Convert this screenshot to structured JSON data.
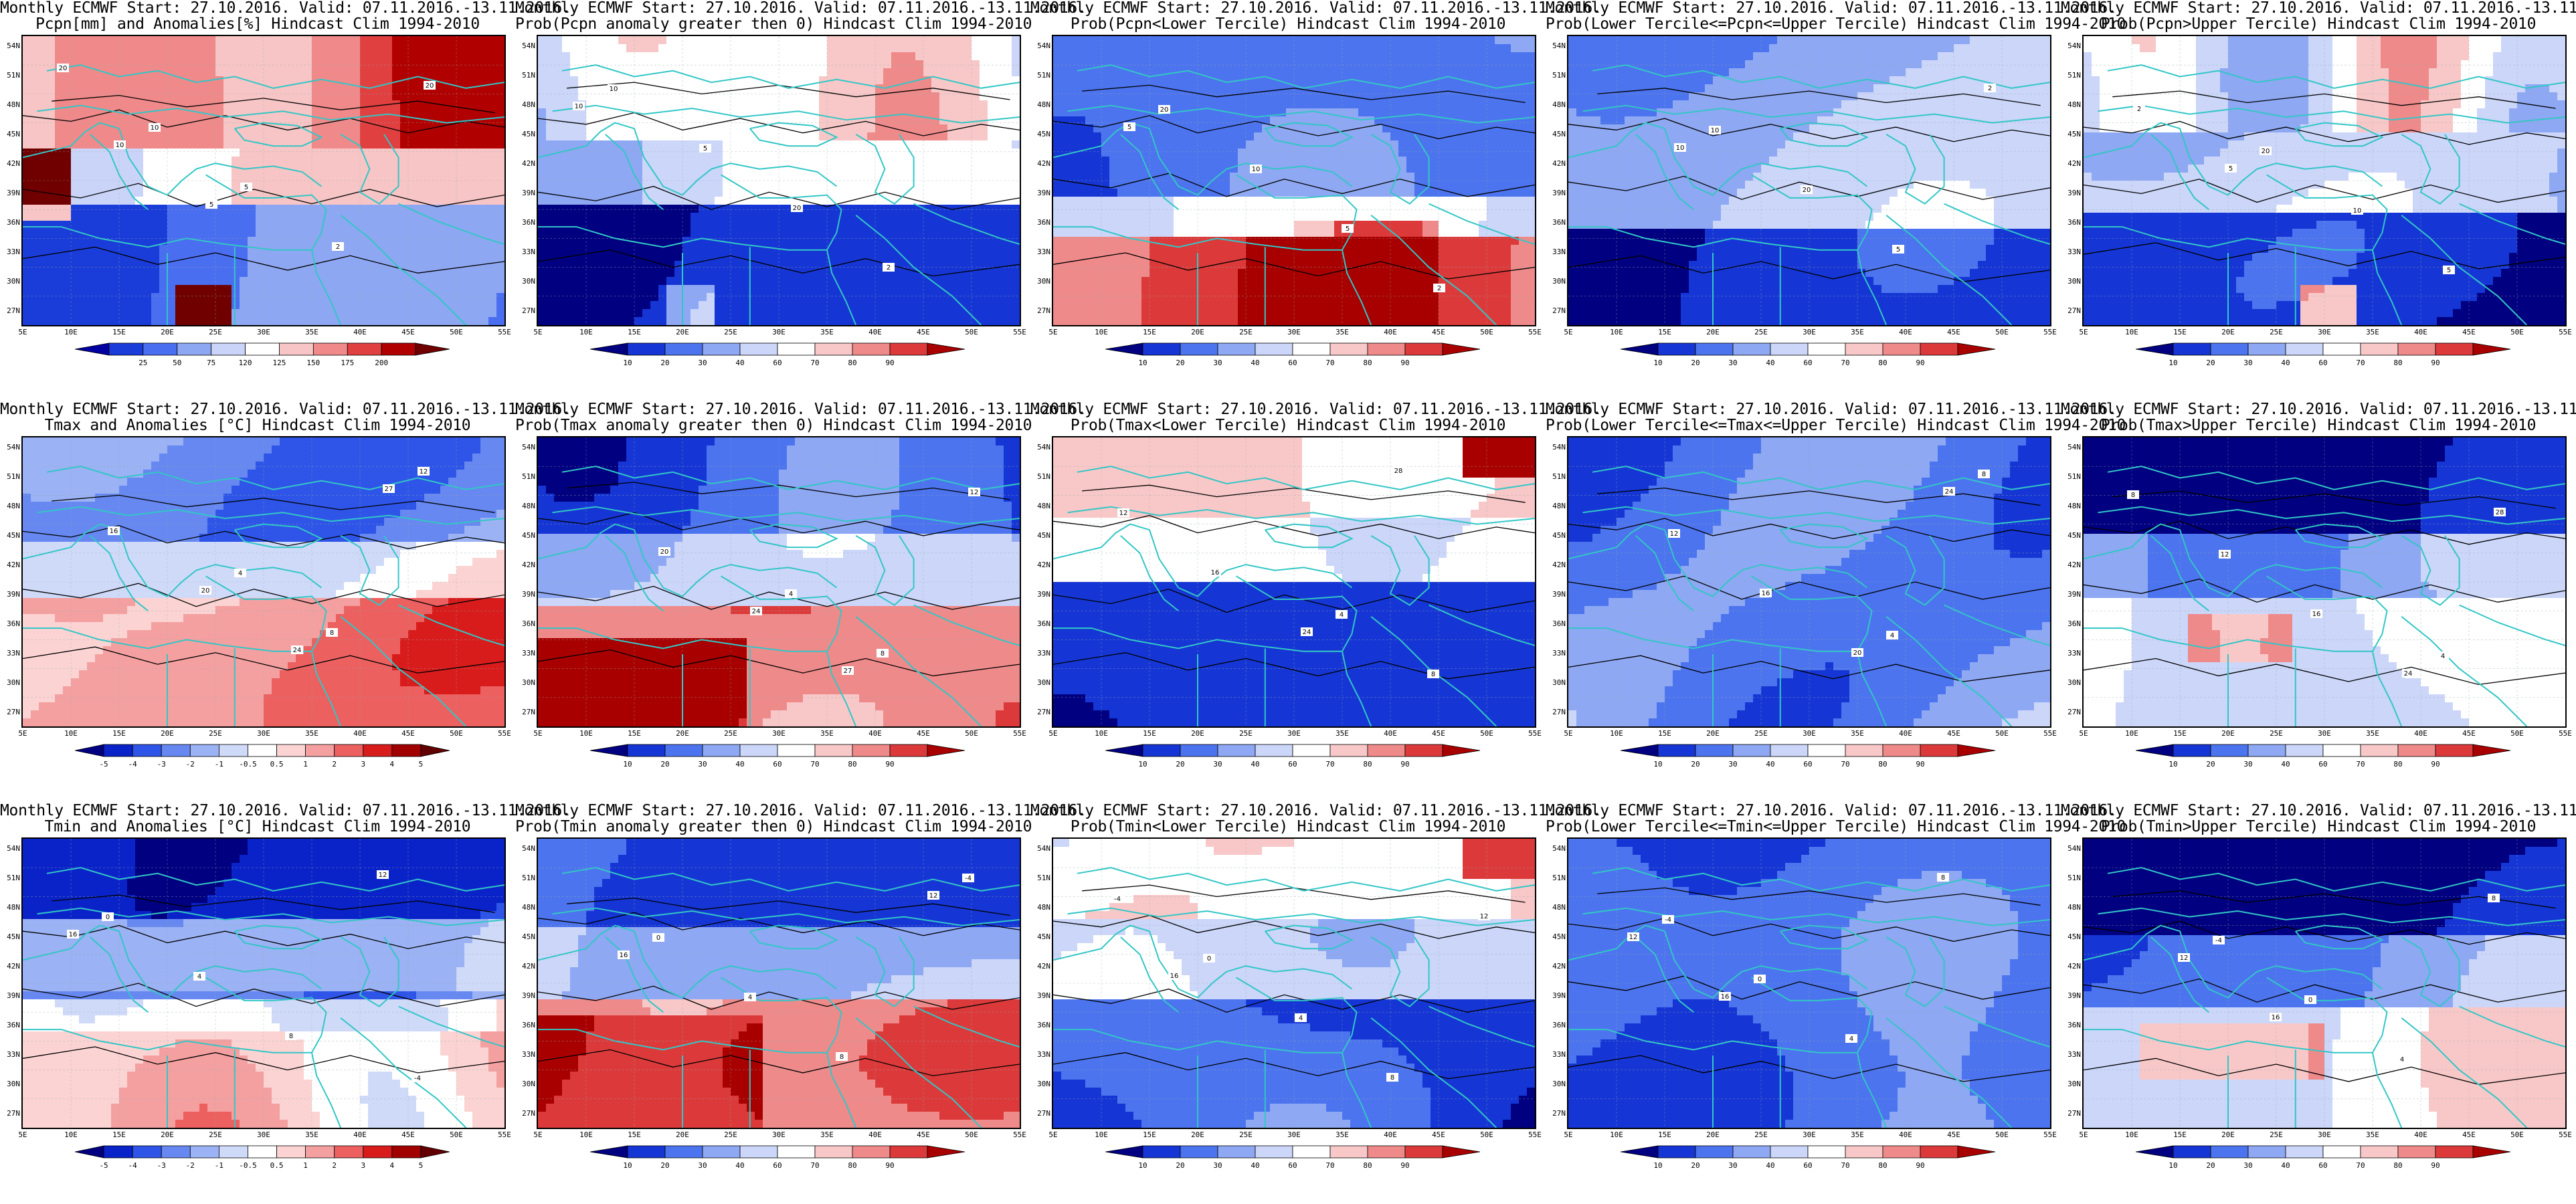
{
  "figure": {
    "title_line1": "Monthly ECMWF Start: 27.10.2016. Valid: 07.11.2016.-13.11.2016.",
    "lat_labels": [
      "54N",
      "51N",
      "48N",
      "45N",
      "42N",
      "39N",
      "36N",
      "33N",
      "30N",
      "27N"
    ],
    "lon_labels": [
      "5E",
      "10E",
      "15E",
      "20E",
      "25E",
      "30E",
      "35E",
      "40E",
      "45E",
      "50E",
      "55E"
    ]
  },
  "colors": {
    "land_border": "#33c6c6",
    "contour": "#000000",
    "deep_blue": "#06038f",
    "deep_red": "#8f0303"
  },
  "colorbars": {
    "pcpn_anom": {
      "labels": [
        "25",
        "50",
        "75",
        "120",
        "125",
        "150",
        "175",
        "200"
      ],
      "colors": [
        "#0000a0",
        "#1a3cd8",
        "#4a6ef0",
        "#8ea7f2",
        "#c9d4f8",
        "#ffffff",
        "#f7c5c5",
        "#f08a8a",
        "#e04040",
        "#b00000",
        "#700000"
      ]
    },
    "temp_anom": {
      "labels": [
        "-5",
        "-4",
        "-3",
        "-2",
        "-1",
        "-0.5",
        "0.5",
        "1",
        "2",
        "3",
        "4",
        "5"
      ],
      "colors": [
        "#000080",
        "#0a23c8",
        "#2e55e8",
        "#6688f0",
        "#9bb2f4",
        "#cfdaf9",
        "#ffffff",
        "#fbd3d3",
        "#f4a0a0",
        "#ec6060",
        "#d81c1c",
        "#a00000",
        "#600000"
      ]
    },
    "prob": {
      "labels": [
        "10",
        "20",
        "30",
        "40",
        "60",
        "70",
        "80",
        "90"
      ],
      "colors": [
        "#000080",
        "#1536d4",
        "#4c74ee",
        "#8ea8f3",
        "#cbd6f9",
        "#ffffff",
        "#f8c8c8",
        "#ef8a8a",
        "#dc3a3a",
        "#a80000"
      ]
    }
  },
  "panels": [
    {
      "title_line2": "Pcpn[mm] and Anomalies[%] Hindcast Clim 1994-2010",
      "cbar": "pcpn_anom",
      "pattern": "pcpn_anom",
      "labels": [
        "20",
        "10",
        "5",
        "2",
        "20",
        "10",
        "5"
      ]
    },
    {
      "title_line2": "Prob(Pcpn anomaly greater then 0) Hindcast Clim 1994-2010",
      "cbar": "prob",
      "pattern": "pcpn_prob",
      "labels": [
        "10",
        "5",
        "20",
        "2",
        "10"
      ]
    },
    {
      "title_line2": "Prob(Pcpn<Lower Tercile) Hindcast Clim 1994-2010",
      "cbar": "prob",
      "pattern": "pcpn_lower",
      "labels": [
        "20",
        "10",
        "5",
        "2",
        "5"
      ]
    },
    {
      "title_line2": "Prob(Lower Tercile<=Pcpn<=Upper Tercile) Hindcast Clim 1994-2010",
      "cbar": "prob",
      "pattern": "pcpn_mid",
      "labels": [
        "10",
        "20",
        "5",
        "2",
        "10"
      ]
    },
    {
      "title_line2": "Prob(Pcpn>Upper Tercile) Hindcast Clim 1994-2010",
      "cbar": "prob",
      "pattern": "pcpn_upper",
      "labels": [
        "20",
        "10",
        "5",
        "2",
        "5"
      ]
    },
    {
      "title_line2": "Tmax and Anomalies [°C] Hindcast Clim 1994-2010",
      "cbar": "temp_anom",
      "pattern": "tmax_anom",
      "labels": [
        "4",
        "8",
        "12",
        "16",
        "20",
        "24",
        "27"
      ]
    },
    {
      "title_line2": "Prob(Tmax anomaly greater then 0) Hindcast Clim 1994-2010",
      "cbar": "prob",
      "pattern": "tmax_prob",
      "labels": [
        "4",
        "8",
        "12",
        "20",
        "24",
        "27"
      ]
    },
    {
      "title_line2": "Prob(Tmax<Lower Tercile) Hindcast Clim 1994-2010",
      "cbar": "prob",
      "pattern": "tmax_lower",
      "labels": [
        "4",
        "8",
        "12",
        "16",
        "24",
        "28"
      ]
    },
    {
      "title_line2": "Prob(Lower Tercile<=Tmax<=Upper Tercile) Hindcast Clim 1994-2010",
      "cbar": "prob",
      "pattern": "tmax_mid",
      "labels": [
        "4",
        "8",
        "12",
        "16",
        "20",
        "24"
      ]
    },
    {
      "title_line2": "Prob(Tmax>Upper Tercile) Hindcast Clim 1994-2010",
      "cbar": "prob",
      "pattern": "tmax_upper",
      "labels": [
        "4",
        "8",
        "12",
        "16",
        "24",
        "28"
      ]
    },
    {
      "title_line2": "Tmin and Anomalies [°C] Hindcast Clim 1994-2010",
      "cbar": "temp_anom",
      "pattern": "tmin_anom",
      "labels": [
        "-4",
        "0",
        "4",
        "8",
        "12",
        "16"
      ]
    },
    {
      "title_line2": "Prob(Tmin anomaly greater then 0) Hindcast Clim 1994-2010",
      "cbar": "prob",
      "pattern": "tmin_prob",
      "labels": [
        "-4",
        "0",
        "4",
        "8",
        "12",
        "16"
      ]
    },
    {
      "title_line2": "Prob(Tmin<Lower Tercile) Hindcast Clim 1994-2010",
      "cbar": "prob",
      "pattern": "tmin_lower",
      "labels": [
        "-4",
        "0",
        "4",
        "8",
        "12",
        "16"
      ]
    },
    {
      "title_line2": "Prob(Lower Tercile<=Tmin<=Upper Tercile) Hindcast Clim 1994-2010",
      "cbar": "prob",
      "pattern": "tmin_mid",
      "labels": [
        "-4",
        "0",
        "4",
        "8",
        "12",
        "16"
      ]
    },
    {
      "title_line2": "Prob(Tmin>Upper Tercile) Hindcast Clim 1994-2010",
      "cbar": "prob",
      "pattern": "tmin_upper",
      "labels": [
        "-4",
        "0",
        "4",
        "8",
        "12",
        "16"
      ]
    }
  ]
}
